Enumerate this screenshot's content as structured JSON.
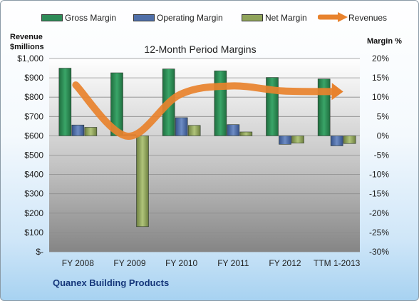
{
  "chart_data": {
    "type": "bar",
    "title": "12-Month Period Margins",
    "categories": [
      "FY 2008",
      "FY 2009",
      "FY 2010",
      "FY 2011",
      "FY 2012",
      "TTM 1-2013"
    ],
    "series": [
      {
        "name": "Gross Margin",
        "axis": "right",
        "unit": "%",
        "values": [
          17.5,
          16.3,
          17.3,
          16.8,
          15.1,
          14.7
        ],
        "color": "#2e8b57"
      },
      {
        "name": "Operating Margin",
        "axis": "right",
        "unit": "%",
        "values": [
          2.8,
          0.3,
          4.7,
          2.9,
          -2.2,
          -2.6
        ],
        "color": "#4f6fa8"
      },
      {
        "name": "Net Margin",
        "axis": "right",
        "unit": "%",
        "values": [
          2.2,
          -23.5,
          2.7,
          1.0,
          -1.9,
          -2.0
        ],
        "color": "#8fa35a"
      },
      {
        "name": "Revenues",
        "axis": "left",
        "unit": "$millions",
        "type": "line",
        "values": [
          863,
          598,
          812,
          858,
          832,
          829
        ],
        "color": "#e8822d"
      }
    ],
    "y_left": {
      "label_line1": "Revenue",
      "label_line2": "$millions",
      "range": [
        0,
        1000
      ],
      "ticks": [
        "$-",
        "$100",
        "$200",
        "$300",
        "$400",
        "$500",
        "$600",
        "$700",
        "$800",
        "$900",
        "$1,000"
      ]
    },
    "y_right": {
      "label": "Margin %",
      "range": [
        -30,
        20
      ],
      "ticks": [
        "-30%",
        "-25%",
        "-20%",
        "-15%",
        "-10%",
        "-5%",
        "0%",
        "5%",
        "10%",
        "15%",
        "20%"
      ]
    },
    "legend_position": "top",
    "grid": true
  },
  "company": "Quanex Building Products"
}
